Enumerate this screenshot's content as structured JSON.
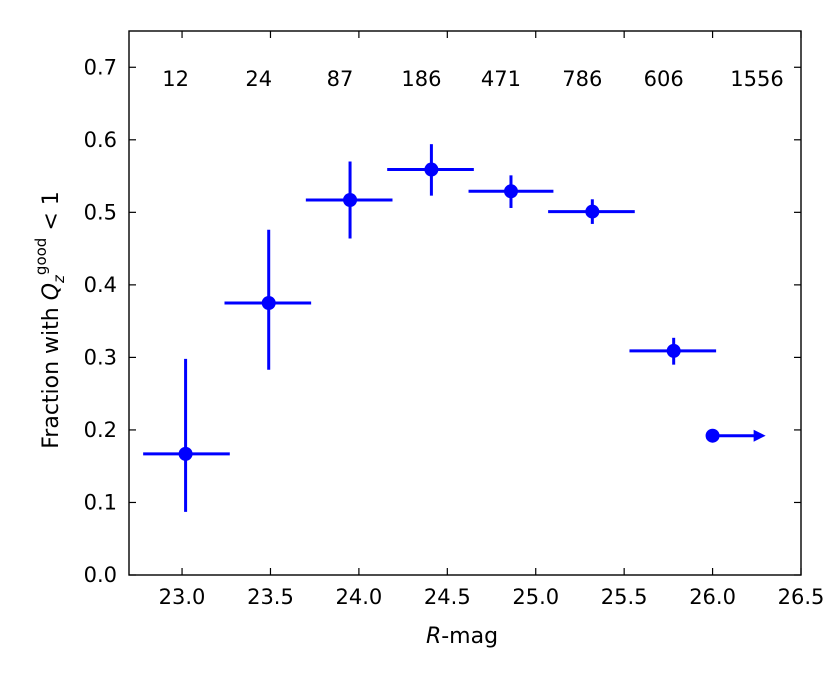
{
  "chart_data": {
    "type": "scatter",
    "title": "",
    "xlabel": {
      "italic": "R",
      "rest": "-mag"
    },
    "ylabel": {
      "prefix": "Fraction with ",
      "var": "Q",
      "sub": "z",
      "sup": "good",
      "suffix": " < 1"
    },
    "xlim": [
      22.7,
      26.5
    ],
    "ylim": [
      0.0,
      0.75
    ],
    "xticks": [
      "23.0",
      "23.5",
      "24.0",
      "24.5",
      "25.0",
      "25.5",
      "26.0",
      "26.5"
    ],
    "yticks": [
      "0.0",
      "0.1",
      "0.2",
      "0.3",
      "0.4",
      "0.5",
      "0.6",
      "0.7"
    ],
    "grid": false,
    "color": "#0000ff",
    "points": [
      {
        "x": 23.02,
        "y": 0.167,
        "xerr_low": 22.78,
        "xerr_high": 23.27,
        "yerr_low": 0.087,
        "yerr_high": 0.298,
        "count": "12"
      },
      {
        "x": 23.49,
        "y": 0.375,
        "xerr_low": 23.24,
        "xerr_high": 23.73,
        "yerr_low": 0.283,
        "yerr_high": 0.476,
        "count": "24"
      },
      {
        "x": 23.95,
        "y": 0.517,
        "xerr_low": 23.7,
        "xerr_high": 24.19,
        "yerr_low": 0.464,
        "yerr_high": 0.57,
        "count": "87"
      },
      {
        "x": 24.41,
        "y": 0.559,
        "xerr_low": 24.16,
        "xerr_high": 24.65,
        "yerr_low": 0.523,
        "yerr_high": 0.594,
        "count": "186"
      },
      {
        "x": 24.86,
        "y": 0.529,
        "xerr_low": 24.62,
        "xerr_high": 25.1,
        "yerr_low": 0.506,
        "yerr_high": 0.551,
        "count": "471"
      },
      {
        "x": 25.32,
        "y": 0.501,
        "xerr_low": 25.07,
        "xerr_high": 25.56,
        "yerr_low": 0.484,
        "yerr_high": 0.518,
        "count": "786"
      },
      {
        "x": 25.78,
        "y": 0.309,
        "xerr_low": 25.53,
        "xerr_high": 26.02,
        "yerr_low": 0.29,
        "yerr_high": 0.327,
        "count": "606"
      }
    ],
    "lower_limit_point": {
      "x": 26.0,
      "y": 0.192,
      "arrow_to": 26.3,
      "count": "1556"
    }
  }
}
